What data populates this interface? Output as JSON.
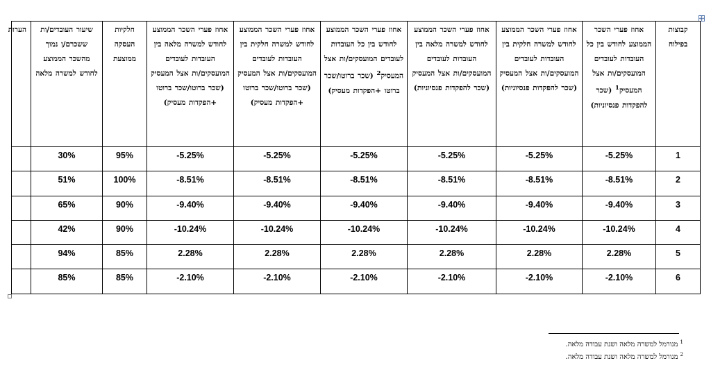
{
  "table": {
    "headers": {
      "group": "קבוצות בפילוח",
      "avg_all_employees": "אחוז פערי השכר הממוצע לחודש בין כל העובדות לעובדים המועסקים/ות אצל המעסיק",
      "avg_all_employees_footnote": "1",
      "avg_all_employees_tail": "(שכר להפקדות פנסיוניות)",
      "avg_part_time": "אחוז פערי השכר הממוצע לחודש למשרה חלקית בין העובדות לעובדים המועסקים/ות אצל המעסיק (שכר להפקדות פנסיוניות)",
      "avg_full_time": "אחוז פערי השכר הממוצע לחודש למשרה מלאה בין העובדות לעובדים המועסקים/ות אצל המעסיק (שכר להפקדות פנסיוניות)",
      "avg_all_gross": "אחוז פערי השכר הממוצע לחודש בין כל העובדות לעובדים המועסקים/ות אצל המעסיק",
      "avg_all_gross_footnote": "2",
      "avg_all_gross_tail": "(שכר ברוטו/שכר ברוטו +הפקדות מעסיק)",
      "avg_part_gross": "אחוז פערי השכר הממוצע לחודש למשרה חלקית בין העובדות לעובדים המועסקים/ות אצל המעסיק (שכר ברוטו/שכר ברוטו +הפקדות מעסיק)",
      "avg_full_gross": "אחוז פערי השכר הממוצע לחודש למשרה מלאה בין העובדות לעובדים המועסקים/ות אצל המעסיק (שכר ברוטו/שכר ברוטו +הפקדות מעסיק)",
      "avg_employment_share": "חלקיות העסקה ממוצעת",
      "rate_above_avg": "שיעור העובדים/ות ששכרם/ן נמוך מהשכר הממוצע לחודש למשרה מלאה",
      "notes": "הערות"
    },
    "rows": [
      {
        "group": "1",
        "c1": "-5.25%",
        "c2": "-5.25%",
        "c3": "-5.25%",
        "c4": "-5.25%",
        "c5": "-5.25%",
        "c6": "-5.25%",
        "share": "95%",
        "rate": "30%",
        "notes": ""
      },
      {
        "group": "2",
        "c1": "-8.51%",
        "c2": "-8.51%",
        "c3": "-8.51%",
        "c4": "-8.51%",
        "c5": "-8.51%",
        "c6": "-8.51%",
        "share": "100%",
        "rate": "51%",
        "notes": ""
      },
      {
        "group": "3",
        "c1": "-9.40%",
        "c2": "-9.40%",
        "c3": "-9.40%",
        "c4": "-9.40%",
        "c5": "-9.40%",
        "c6": "-9.40%",
        "share": "90%",
        "rate": "65%",
        "notes": ""
      },
      {
        "group": "4",
        "c1": "-10.24%",
        "c2": "-10.24%",
        "c3": "-10.24%",
        "c4": "-10.24%",
        "c5": "-10.24%",
        "c6": "-10.24%",
        "share": "90%",
        "rate": "42%",
        "notes": ""
      },
      {
        "group": "5",
        "c1": "2.28%",
        "c2": "2.28%",
        "c3": "2.28%",
        "c4": "2.28%",
        "c5": "2.28%",
        "c6": "2.28%",
        "share": "85%",
        "rate": "94%",
        "notes": ""
      },
      {
        "group": "6",
        "c1": "-2.10%",
        "c2": "-2.10%",
        "c3": "-2.10%",
        "c4": "-2.10%",
        "c5": "-2.10%",
        "c6": "-2.10%",
        "share": "85%",
        "rate": "85%",
        "notes": ""
      }
    ]
  },
  "footnotes": [
    {
      "mark": "1",
      "text": "מנורמל למשרה מלאה ושנת עבודה מלאה."
    },
    {
      "mark": "2",
      "text": "מנורמל למשרה מלאה ושנת עבודה מלאה."
    }
  ],
  "icons": {
    "table_move_handle": "move-arrows-icon",
    "table_resize_handle": "resize-square-icon"
  }
}
